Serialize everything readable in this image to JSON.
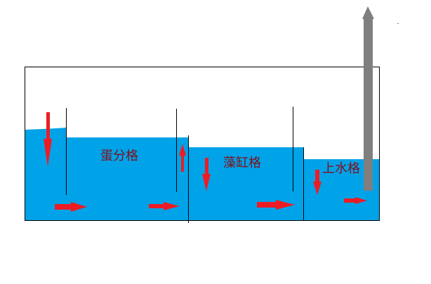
{
  "labels": {
    "skimmer": "蛋分格",
    "refugium": "藻缸格",
    "return": "上水格"
  },
  "colors": {
    "water": "#00a2e8",
    "arrow": "#ed1c24",
    "pipe": "#7f7f7f",
    "label": "#80101a",
    "line": "#000000"
  }
}
